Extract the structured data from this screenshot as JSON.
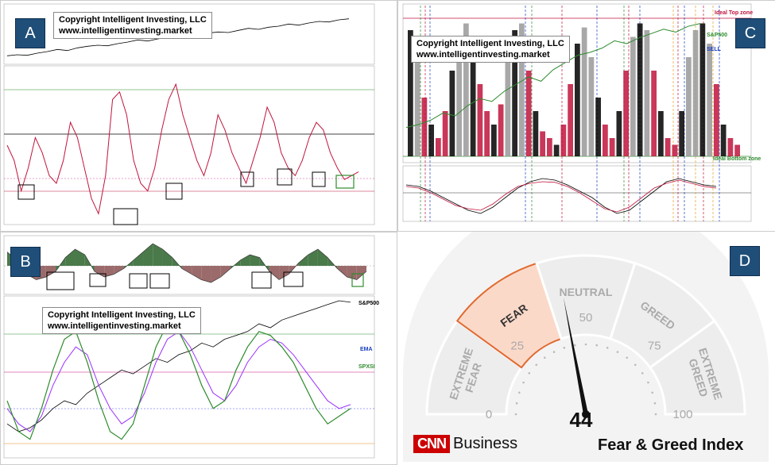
{
  "colors": {
    "tag_bg": "#1f4e79",
    "red_line": "#c0143c",
    "green_line": "#2e8b2e",
    "purple_line": "#9b30ff",
    "fill_green": "#4a7a4a",
    "fill_red": "#9b6b6b",
    "fear_fill": "#fbd9c9",
    "fear_border": "#e06a30",
    "cnn_red": "#cc0000"
  },
  "panels": {
    "A": {
      "tag": "A",
      "copyright_line1": "Copyright Intelligent Investing, LLC",
      "copyright_line2": "www.intelligentinvesting.market"
    },
    "B": {
      "tag": "B",
      "copyright_line1": "Copyright Intelligent Investing, LLC",
      "copyright_line2": "www.intelligentinvesting.market",
      "label_sp500": "S&P500",
      "label_ema": "EMA",
      "label_spxsi": "SPXSI"
    },
    "C": {
      "tag": "C",
      "copyright_line1": "Copyright Intelligent Investing, LLC",
      "copyright_line2": "www.intelligentinvesting.market",
      "label_top": "Ideal Top zone",
      "label_sp500": "S&P500",
      "label_sell": "SELL",
      "label_bottom": "Ideal Bottom zone"
    },
    "D": {
      "tag": "D"
    }
  },
  "chart_data": [
    {
      "type": "line",
      "panel": "A-top",
      "series": [
        {
          "values": [
            10,
            12,
            11,
            15,
            18,
            22,
            20,
            25,
            28,
            30,
            29,
            33,
            36,
            40,
            38,
            42,
            45,
            48,
            46,
            50,
            53,
            55,
            54,
            58,
            62,
            60,
            64,
            66,
            70,
            68,
            72,
            75,
            74,
            78,
            80
          ]
        }
      ]
    },
    {
      "type": "line",
      "panel": "A-oscillator",
      "series": [
        {
          "values": [
            0,
            -20,
            -60,
            -30,
            10,
            -10,
            -40,
            -50,
            -20,
            30,
            10,
            -30,
            -70,
            -90,
            -40,
            60,
            70,
            40,
            -20,
            -50,
            -60,
            -30,
            20,
            60,
            80,
            40,
            10,
            -20,
            -40,
            -10,
            40,
            20,
            -10,
            -30,
            -50,
            -20,
            10,
            50,
            30,
            -10,
            -30,
            -40,
            -20,
            10,
            30,
            20,
            -10,
            -30,
            -45,
            -40,
            -35
          ]
        }
      ]
    },
    {
      "type": "line",
      "panel": "B-top",
      "series": [
        {
          "values": [
            5,
            2,
            -3,
            -5,
            -4,
            -2,
            3,
            6,
            4,
            -2,
            -4,
            -3,
            -1,
            2,
            5,
            8,
            6,
            3,
            -1,
            -3,
            -5,
            -6,
            -4,
            -1,
            2,
            4,
            3,
            -2,
            -5,
            -3,
            1,
            4,
            6,
            3,
            -1,
            -4,
            -5,
            -2
          ]
        }
      ]
    },
    {
      "type": "line",
      "panel": "B-bottom",
      "series": [
        {
          "name": "S&P500",
          "values": [
            -60,
            -70,
            -65,
            -55,
            -40,
            -30,
            -35,
            -20,
            -10,
            0,
            10,
            5,
            15,
            25,
            20,
            30,
            35,
            45,
            40,
            50,
            55,
            60,
            70,
            65,
            75,
            80,
            85,
            90,
            95,
            100,
            98
          ]
        },
        {
          "name": "EMA",
          "values": [
            -40,
            -60,
            -70,
            -50,
            -10,
            20,
            40,
            30,
            -10,
            -40,
            -60,
            -50,
            -20,
            20,
            50,
            60,
            40,
            10,
            -20,
            -30,
            -10,
            20,
            40,
            50,
            45,
            30,
            10,
            -10,
            -30,
            -40,
            -35
          ]
        },
        {
          "name": "SPXSI",
          "values": [
            -30,
            -70,
            -80,
            -40,
            10,
            50,
            60,
            20,
            -30,
            -70,
            -80,
            -60,
            -10,
            40,
            70,
            60,
            30,
            -10,
            -40,
            -30,
            10,
            40,
            60,
            55,
            40,
            20,
            -10,
            -40,
            -60,
            -50,
            -40
          ]
        }
      ]
    },
    {
      "type": "line",
      "panel": "C-top",
      "series": [
        {
          "name": "S&P500",
          "values": [
            20,
            22,
            25,
            30,
            28,
            35,
            40,
            38,
            45,
            50,
            55,
            52,
            60,
            65,
            70,
            72,
            75,
            80,
            78,
            82,
            85,
            88,
            86,
            90,
            92
          ]
        }
      ]
    },
    {
      "type": "line",
      "panel": "C-bottom",
      "series": [
        {
          "values": [
            10,
            5,
            -10,
            -30,
            -50,
            -70,
            -80,
            -60,
            -30,
            0,
            20,
            30,
            25,
            10,
            -10,
            -30,
            -60,
            -80,
            -70,
            -40,
            -10,
            20,
            30,
            20,
            10,
            5
          ]
        },
        {
          "values": [
            5,
            0,
            -15,
            -35,
            -55,
            -65,
            -70,
            -50,
            -20,
            5,
            15,
            20,
            18,
            5,
            -15,
            -40,
            -65,
            -75,
            -60,
            -30,
            0,
            15,
            25,
            15,
            5,
            0
          ]
        }
      ]
    },
    {
      "type": "gauge",
      "panel": "D",
      "value": 44,
      "min": 0,
      "max": 100,
      "zones": [
        "EXTREME FEAR",
        "FEAR",
        "NEUTRAL",
        "GREED",
        "EXTREME GREED"
      ],
      "ticks": [
        "0",
        "25",
        "50",
        "75",
        "100"
      ],
      "active_zone": "FEAR",
      "brand": "CNN",
      "brand_suffix": "Business",
      "index_title": "Fear & Greed Index"
    }
  ]
}
